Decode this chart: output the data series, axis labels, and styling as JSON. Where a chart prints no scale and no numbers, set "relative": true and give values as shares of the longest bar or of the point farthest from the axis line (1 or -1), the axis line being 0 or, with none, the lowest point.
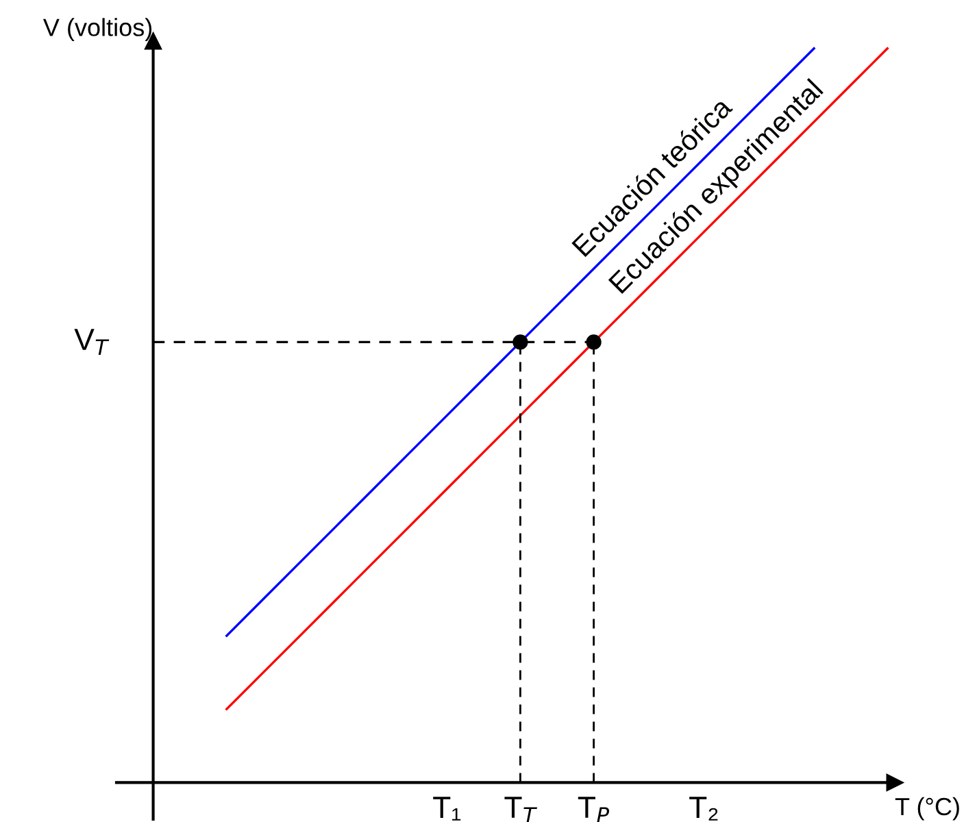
{
  "chart_data": {
    "type": "line",
    "relative": true,
    "xlabel": "T (°C)",
    "ylabel": "V (voltios)",
    "categories": [
      null,
      null,
      null,
      null,
      null,
      null,
      null,
      null,
      "T₁",
      null,
      "T$_{T}$",
      null,
      "T$_{P}$",
      null,
      null,
      "T₂",
      null,
      null,
      null,
      null,
      null
    ],
    "legend": false,
    "series": [
      {
        "name": "Ecuación teórica",
        "color": "#0000ff",
        "values": [
          null,
          null,
          0.2,
          0.25,
          0.3,
          0.35,
          0.4,
          0.45,
          0.5,
          0.55,
          0.6,
          0.65,
          0.7,
          0.75,
          0.8,
          0.85,
          0.9,
          0.95,
          1.0,
          null,
          null
        ]
      },
      {
        "name": "Ecuación experimental",
        "color": "#ff0000",
        "values": [
          null,
          null,
          0.1,
          0.15,
          0.2,
          0.25,
          0.3,
          0.35,
          0.4,
          0.45,
          0.5,
          0.55,
          0.6,
          0.65,
          0.7,
          0.75,
          0.8,
          0.85,
          0.9,
          0.95,
          1.0
        ]
      },
      {
        "name": "V$_{T}$",
        "color": "#000000",
        "line_style": "dashed",
        "values": [
          0.6,
          0.6,
          0.6,
          0.6,
          0.6,
          0.6,
          0.6,
          0.6,
          0.6,
          0.6,
          0.6,
          0.6,
          0.6,
          null,
          null,
          null,
          null,
          null,
          null,
          null,
          null
        ]
      },
      {
        "color": "#000000",
        "type": "lollipop",
        "marker": "circle",
        "line_style": "dashed",
        "values": [
          null,
          null,
          null,
          null,
          null,
          null,
          null,
          null,
          null,
          null,
          0.6,
          null,
          0.6,
          null,
          null,
          null,
          null,
          null,
          null,
          null,
          null
        ]
      }
    ]
  }
}
